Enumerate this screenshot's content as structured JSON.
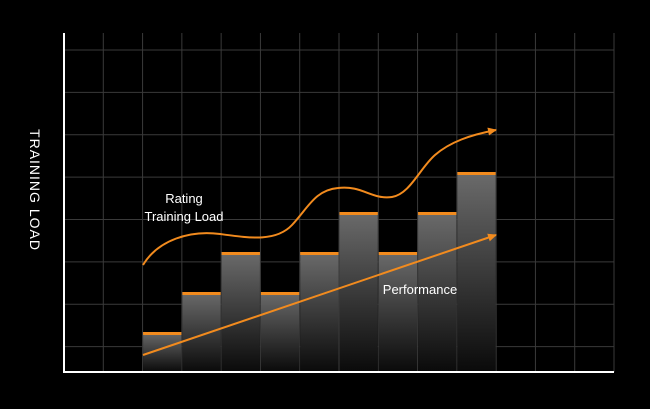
{
  "chart_data": {
    "type": "bar",
    "ylabel": "TRAINING LOAD",
    "xlabel": "",
    "title": "",
    "grid": true,
    "n_columns": 14,
    "n_rows": 8,
    "bars": {
      "start_column": 2,
      "values": [
        1,
        2,
        3,
        2,
        3,
        4,
        3,
        4,
        5
      ]
    },
    "annotations": [
      {
        "id": "rating",
        "lines": [
          "Rating",
          "Training Load"
        ]
      },
      {
        "id": "performance",
        "lines": [
          "Performance"
        ]
      }
    ],
    "colors": {
      "background": "#000000",
      "grid": "#3a3a3a",
      "axis": "#ffffff",
      "bar_top": "#6b6b6b",
      "bar_bottom": "#0a0a0a",
      "cap": "#f28b1e",
      "arrow": "#f28b1e",
      "text": "#ffffff"
    }
  }
}
